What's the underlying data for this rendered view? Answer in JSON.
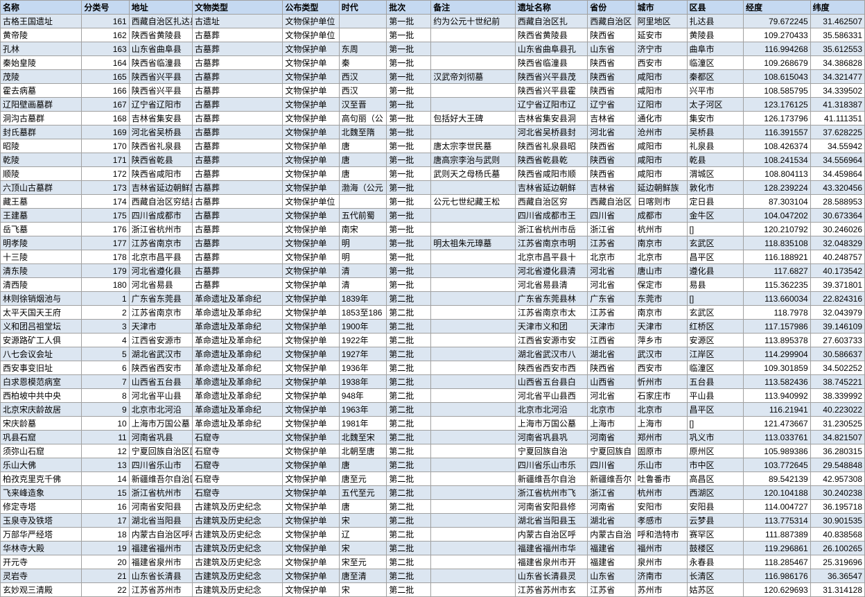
{
  "header_bg": "#c5d9f1",
  "stripe_colors": [
    "#dce6f1",
    "#ffffff"
  ],
  "border_color": "#a0a0a0",
  "columns": [
    {
      "key": "name",
      "label": "名称",
      "width": 108,
      "align": "left"
    },
    {
      "key": "catno",
      "label": "分类号",
      "width": 63,
      "align": "right"
    },
    {
      "key": "addr",
      "label": "地址",
      "width": 84,
      "align": "left"
    },
    {
      "key": "type",
      "label": "文物类型",
      "width": 120,
      "align": "left"
    },
    {
      "key": "pubtype",
      "label": "公布类型",
      "width": 75,
      "align": "left"
    },
    {
      "key": "era",
      "label": "时代",
      "width": 63,
      "align": "left"
    },
    {
      "key": "batch",
      "label": "批次",
      "width": 59,
      "align": "left"
    },
    {
      "key": "note",
      "label": "备注",
      "width": 112,
      "align": "left"
    },
    {
      "key": "sitename",
      "label": "遗址名称",
      "width": 96,
      "align": "left"
    },
    {
      "key": "province",
      "label": "省份",
      "width": 63,
      "align": "left"
    },
    {
      "key": "city",
      "label": "城市",
      "width": 69,
      "align": "left"
    },
    {
      "key": "district",
      "label": "区县",
      "width": 75,
      "align": "left"
    },
    {
      "key": "lon",
      "label": "经度",
      "width": 89,
      "align": "right"
    },
    {
      "key": "lat",
      "label": "纬度",
      "width": 72,
      "align": "right"
    }
  ],
  "rows": [
    {
      "name": "古格王国遗址",
      "catno": "161",
      "addr": "西藏自治区扎达县",
      "type": "古遗址",
      "pubtype": "文物保护单位",
      "era": "",
      "batch": "第一批",
      "note": "约为公元十世纪前",
      "sitename": "西藏自治区扎",
      "province": "西藏自治区",
      "city": "阿里地区",
      "district": "扎达县",
      "lon": "79.672245",
      "lat": "31.462507"
    },
    {
      "name": "黄帝陵",
      "catno": "162",
      "addr": "陕西省黄陵县",
      "type": "古墓葬",
      "pubtype": "文物保护单位",
      "era": "",
      "batch": "第一批",
      "note": "",
      "sitename": "陕西省黄陵县",
      "province": "陕西省",
      "city": "延安市",
      "district": "黄陵县",
      "lon": "109.270433",
      "lat": "35.586331"
    },
    {
      "name": "孔林",
      "catno": "163",
      "addr": "山东省曲阜县",
      "type": "古墓葬",
      "pubtype": "文物保护单",
      "era": "东周",
      "batch": "第一批",
      "note": "",
      "sitename": "山东省曲阜县孔",
      "province": "山东省",
      "city": "济宁市",
      "district": "曲阜市",
      "lon": "116.994268",
      "lat": "35.612553"
    },
    {
      "name": "秦始皇陵",
      "catno": "164",
      "addr": "陕西省临潼县",
      "type": "古墓葬",
      "pubtype": "文物保护单",
      "era": "秦",
      "batch": "第一批",
      "note": "",
      "sitename": "陕西省临潼县",
      "province": "陕西省",
      "city": "西安市",
      "district": "临潼区",
      "lon": "109.268679",
      "lat": "34.386828"
    },
    {
      "name": "茂陵",
      "catno": "165",
      "addr": "陕西省兴平县",
      "type": "古墓葬",
      "pubtype": "文物保护单",
      "era": "西汉",
      "batch": "第一批",
      "note": "汉武帝刘彻墓",
      "sitename": "陕西省兴平县茂",
      "province": "陕西省",
      "city": "咸阳市",
      "district": "秦都区",
      "lon": "108.615043",
      "lat": "34.321477"
    },
    {
      "name": "霍去病墓",
      "catno": "166",
      "addr": "陕西省兴平县",
      "type": "古墓葬",
      "pubtype": "文物保护单",
      "era": "西汉",
      "batch": "第一批",
      "note": "",
      "sitename": "陕西省兴平县霍",
      "province": "陕西省",
      "city": "咸阳市",
      "district": "兴平市",
      "lon": "108.585795",
      "lat": "34.339502"
    },
    {
      "name": "辽阳壁画墓群",
      "catno": "167",
      "addr": "辽宁省辽阳市",
      "type": "古墓葬",
      "pubtype": "文物保护单",
      "era": "汉至晋",
      "batch": "第一批",
      "note": "",
      "sitename": "辽宁省辽阳市辽",
      "province": "辽宁省",
      "city": "辽阳市",
      "district": "太子河区",
      "lon": "123.176125",
      "lat": "41.318387"
    },
    {
      "name": "洞沟古墓群",
      "catno": "168",
      "addr": "吉林省集安县",
      "type": "古墓葬",
      "pubtype": "文物保护单",
      "era": "高句丽（公",
      "batch": "第一批",
      "note": "包括好大王碑",
      "sitename": "吉林省集安县洞",
      "province": "吉林省",
      "city": "通化市",
      "district": "集安市",
      "lon": "126.173796",
      "lat": "41.111351"
    },
    {
      "name": "封氏墓群",
      "catno": "169",
      "addr": "河北省吴桥县",
      "type": "古墓葬",
      "pubtype": "文物保护单",
      "era": "北魏至隋",
      "batch": "第一批",
      "note": "",
      "sitename": "河北省吴桥县封",
      "province": "河北省",
      "city": "沧州市",
      "district": "吴桥县",
      "lon": "116.391557",
      "lat": "37.628225"
    },
    {
      "name": "昭陵",
      "catno": "170",
      "addr": "陕西省礼泉县",
      "type": "古墓葬",
      "pubtype": "文物保护单",
      "era": "唐",
      "batch": "第一批",
      "note": "唐太宗李世民墓",
      "sitename": "陕西省礼泉县昭",
      "province": "陕西省",
      "city": "咸阳市",
      "district": "礼泉县",
      "lon": "108.426374",
      "lat": "34.55942"
    },
    {
      "name": "乾陵",
      "catno": "171",
      "addr": "陕西省乾县",
      "type": "古墓葬",
      "pubtype": "文物保护单",
      "era": "唐",
      "batch": "第一批",
      "note": "唐高宗李治与武则",
      "sitename": "陕西省乾县乾",
      "province": "陕西省",
      "city": "咸阳市",
      "district": "乾县",
      "lon": "108.241534",
      "lat": "34.556964"
    },
    {
      "name": "顺陵",
      "catno": "172",
      "addr": "陕西省咸阳市",
      "type": "古墓葬",
      "pubtype": "文物保护单",
      "era": "唐",
      "batch": "第一批",
      "note": "武则天之母杨氏墓",
      "sitename": "陕西省咸阳市顺",
      "province": "陕西省",
      "city": "咸阳市",
      "district": "渭城区",
      "lon": "108.804113",
      "lat": "34.459864"
    },
    {
      "name": "六顶山古墓群",
      "catno": "173",
      "addr": "吉林省延边朝鲜族",
      "type": "古墓葬",
      "pubtype": "文物保护单",
      "era": "渤海（公元",
      "batch": "第一批",
      "note": "",
      "sitename": "吉林省延边朝鲜",
      "province": "吉林省",
      "city": "延边朝鲜族",
      "district": "敦化市",
      "lon": "128.239224",
      "lat": "43.320456"
    },
    {
      "name": "藏王墓",
      "catno": "174",
      "addr": "西藏自治区穷结县",
      "type": "古墓葬",
      "pubtype": "文物保护单位",
      "era": "",
      "batch": "第一批",
      "note": "公元七世纪藏王松",
      "sitename": "西藏自治区穷",
      "province": "西藏自治区",
      "city": "日喀则市",
      "district": "定日县",
      "lon": "87.303104",
      "lat": "28.588953"
    },
    {
      "name": "王建墓",
      "catno": "175",
      "addr": "四川省成都市",
      "type": "古墓葬",
      "pubtype": "文物保护单",
      "era": "五代前蜀",
      "batch": "第一批",
      "note": "",
      "sitename": "四川省成都市王",
      "province": "四川省",
      "city": "成都市",
      "district": "金牛区",
      "lon": "104.047202",
      "lat": "30.673364"
    },
    {
      "name": "岳飞墓",
      "catno": "176",
      "addr": "浙江省杭州市",
      "type": "古墓葬",
      "pubtype": "文物保护单",
      "era": "南宋",
      "batch": "第一批",
      "note": "",
      "sitename": "浙江省杭州市岳",
      "province": "浙江省",
      "city": "杭州市",
      "district": "[]",
      "lon": "120.210792",
      "lat": "30.246026"
    },
    {
      "name": "明孝陵",
      "catno": "177",
      "addr": "江苏省南京市",
      "type": "古墓葬",
      "pubtype": "文物保护单",
      "era": "明",
      "batch": "第一批",
      "note": "明太祖朱元璋墓",
      "sitename": "江苏省南京市明",
      "province": "江苏省",
      "city": "南京市",
      "district": "玄武区",
      "lon": "118.835108",
      "lat": "32.048329"
    },
    {
      "name": "十三陵",
      "catno": "178",
      "addr": "北京市昌平县",
      "type": "古墓葬",
      "pubtype": "文物保护单",
      "era": "明",
      "batch": "第一批",
      "note": "",
      "sitename": "北京市昌平县十",
      "province": "北京市",
      "city": "北京市",
      "district": "昌平区",
      "lon": "116.188921",
      "lat": "40.248757"
    },
    {
      "name": "清东陵",
      "catno": "179",
      "addr": "河北省遵化县",
      "type": "古墓葬",
      "pubtype": "文物保护单",
      "era": "清",
      "batch": "第一批",
      "note": "",
      "sitename": "河北省遵化县清",
      "province": "河北省",
      "city": "唐山市",
      "district": "遵化县",
      "lon": "117.6827",
      "lat": "40.173542"
    },
    {
      "name": "清西陵",
      "catno": "180",
      "addr": "河北省易县",
      "type": "古墓葬",
      "pubtype": "文物保护单",
      "era": "清",
      "batch": "第一批",
      "note": "",
      "sitename": "河北省易县清",
      "province": "河北省",
      "city": "保定市",
      "district": "易县",
      "lon": "115.362235",
      "lat": "39.371801"
    },
    {
      "name": "林则徐销烟池与",
      "catno": "1",
      "addr": "广东省东莞县",
      "type": "革命遗址及革命纪",
      "pubtype": "文物保护单",
      "era": "1839年",
      "batch": "第二批",
      "note": "",
      "sitename": "广东省东莞县林",
      "province": "广东省",
      "city": "东莞市",
      "district": "[]",
      "lon": "113.660034",
      "lat": "22.824316"
    },
    {
      "name": "太平天国天王府",
      "catno": "2",
      "addr": "江苏省南京市",
      "type": "革命遗址及革命纪",
      "pubtype": "文物保护单",
      "era": "1853至186",
      "batch": "第二批",
      "note": "",
      "sitename": "江苏省南京市太",
      "province": "江苏省",
      "city": "南京市",
      "district": "玄武区",
      "lon": "118.7978",
      "lat": "32.043979"
    },
    {
      "name": "义和团吕祖堂坛",
      "catno": "3",
      "addr": "天津市",
      "type": "革命遗址及革命纪",
      "pubtype": "文物保护单",
      "era": "1900年",
      "batch": "第二批",
      "note": "",
      "sitename": "天津市义和团",
      "province": "天津市",
      "city": "天津市",
      "district": "红桥区",
      "lon": "117.157986",
      "lat": "39.146109"
    },
    {
      "name": "安源路矿工人俱",
      "catno": "4",
      "addr": "江西省安源市",
      "type": "革命遗址及革命纪",
      "pubtype": "文物保护单",
      "era": "1922年",
      "batch": "第二批",
      "note": "",
      "sitename": "江西省安源市安",
      "province": "江西省",
      "city": "萍乡市",
      "district": "安源区",
      "lon": "113.895378",
      "lat": "27.603733"
    },
    {
      "name": "八七会议会址",
      "catno": "5",
      "addr": "湖北省武汉市",
      "type": "革命遗址及革命纪",
      "pubtype": "文物保护单",
      "era": "1927年",
      "batch": "第二批",
      "note": "",
      "sitename": "湖北省武汉市八",
      "province": "湖北省",
      "city": "武汉市",
      "district": "江岸区",
      "lon": "114.299904",
      "lat": "30.586637"
    },
    {
      "name": "西安事变旧址",
      "catno": "6",
      "addr": "陕西省西安市",
      "type": "革命遗址及革命纪",
      "pubtype": "文物保护单",
      "era": "1936年",
      "batch": "第二批",
      "note": "",
      "sitename": "陕西省西安市西",
      "province": "陕西省",
      "city": "西安市",
      "district": "临潼区",
      "lon": "109.301859",
      "lat": "34.502252"
    },
    {
      "name": "白求恩模范病室",
      "catno": "7",
      "addr": "山西省五台县",
      "type": "革命遗址及革命纪",
      "pubtype": "文物保护单",
      "era": "1938年",
      "batch": "第二批",
      "note": "",
      "sitename": "山西省五台县白",
      "province": "山西省",
      "city": "忻州市",
      "district": "五台县",
      "lon": "113.582436",
      "lat": "38.745221"
    },
    {
      "name": "西柏坡中共中央",
      "catno": "8",
      "addr": "河北省平山县",
      "type": "革命遗址及革命纪",
      "pubtype": "文物保护单",
      "era": "948年",
      "batch": "第二批",
      "note": "",
      "sitename": "河北省平山县西",
      "province": "河北省",
      "city": "石家庄市",
      "district": "平山县",
      "lon": "113.940992",
      "lat": "38.339992"
    },
    {
      "name": "北京宋庆龄故居",
      "catno": "9",
      "addr": "北京市北河沿",
      "type": "革命遗址及革命纪",
      "pubtype": "文物保护单",
      "era": "1963年",
      "batch": "第二批",
      "note": "",
      "sitename": "北京市北河沿",
      "province": "北京市",
      "city": "北京市",
      "district": "昌平区",
      "lon": "116.21941",
      "lat": "40.223022"
    },
    {
      "name": "宋庆龄墓",
      "catno": "10",
      "addr": "上海市万国公墓",
      "type": "革命遗址及革命纪",
      "pubtype": "文物保护单",
      "era": "1981年",
      "batch": "第二批",
      "note": "",
      "sitename": "上海市万国公墓",
      "province": "上海市",
      "city": "上海市",
      "district": "[]",
      "lon": "121.473667",
      "lat": "31.230525"
    },
    {
      "name": "巩县石窟",
      "catno": "11",
      "addr": "河南省巩县",
      "type": "石窟寺",
      "pubtype": "文物保护单",
      "era": "北魏至宋",
      "batch": "第二批",
      "note": "",
      "sitename": "河南省巩县巩",
      "province": "河南省",
      "city": "郑州市",
      "district": "巩义市",
      "lon": "113.033761",
      "lat": "34.821507"
    },
    {
      "name": "须弥山石窟",
      "catno": "12",
      "addr": "宁夏回族自治区固",
      "type": "石窟寺",
      "pubtype": "文物保护单",
      "era": "北朝至唐",
      "batch": "第二批",
      "note": "",
      "sitename": "宁夏回族自治",
      "province": "宁夏回族自",
      "city": "固原市",
      "district": "原州区",
      "lon": "105.989386",
      "lat": "36.280315"
    },
    {
      "name": "乐山大佛",
      "catno": "13",
      "addr": "四川省乐山市",
      "type": "石窟寺",
      "pubtype": "文物保护单",
      "era": "唐",
      "batch": "第二批",
      "note": "",
      "sitename": "四川省乐山市乐",
      "province": "四川省",
      "city": "乐山市",
      "district": "市中区",
      "lon": "103.772645",
      "lat": "29.548848"
    },
    {
      "name": "柏孜克里克千佛",
      "catno": "14",
      "addr": "新疆维吾尔自治区",
      "type": "石窟寺",
      "pubtype": "文物保护单",
      "era": "唐至元",
      "batch": "第二批",
      "note": "",
      "sitename": "新疆维吾尔自治",
      "province": "新疆维吾尔",
      "city": "吐鲁番市",
      "district": "高昌区",
      "lon": "89.542139",
      "lat": "42.957308"
    },
    {
      "name": "飞来峰造象",
      "catno": "15",
      "addr": "浙江省杭州市",
      "type": "石窟寺",
      "pubtype": "文物保护单",
      "era": "五代至元",
      "batch": "第二批",
      "note": "",
      "sitename": "浙江省杭州市飞",
      "province": "浙江省",
      "city": "杭州市",
      "district": "西湖区",
      "lon": "120.104188",
      "lat": "30.240238"
    },
    {
      "name": "修定寺塔",
      "catno": "16",
      "addr": "河南省安阳县",
      "type": "古建筑及历史纪念",
      "pubtype": "文物保护单",
      "era": "唐",
      "batch": "第二批",
      "note": "",
      "sitename": "河南省安阳县修",
      "province": "河南省",
      "city": "安阳市",
      "district": "安阳县",
      "lon": "114.004727",
      "lat": "36.195718"
    },
    {
      "name": "玉泉寺及铁塔",
      "catno": "17",
      "addr": "湖北省当阳县",
      "type": "古建筑及历史纪念",
      "pubtype": "文物保护单",
      "era": "宋",
      "batch": "第二批",
      "note": "",
      "sitename": "湖北省当阳县玉",
      "province": "湖北省",
      "city": "孝感市",
      "district": "云梦县",
      "lon": "113.775314",
      "lat": "30.901535"
    },
    {
      "name": "万部华严经塔",
      "catno": "18",
      "addr": "内蒙古自治区呼和",
      "type": "古建筑及历史纪念",
      "pubtype": "文物保护单",
      "era": "辽",
      "batch": "第二批",
      "note": "",
      "sitename": "内蒙古自治区呼",
      "province": "内蒙古自治",
      "city": "呼和浩特市",
      "district": "赛罕区",
      "lon": "111.887389",
      "lat": "40.838568"
    },
    {
      "name": "华林寺大殿",
      "catno": "19",
      "addr": "福建省福州市",
      "type": "古建筑及历史纪念",
      "pubtype": "文物保护单",
      "era": "宋",
      "batch": "第二批",
      "note": "",
      "sitename": "福建省福州市华",
      "province": "福建省",
      "city": "福州市",
      "district": "鼓楼区",
      "lon": "119.296861",
      "lat": "26.100265"
    },
    {
      "name": "开元寺",
      "catno": "20",
      "addr": "福建省泉州市",
      "type": "古建筑及历史纪念",
      "pubtype": "文物保护单",
      "era": "宋至元",
      "batch": "第二批",
      "note": "",
      "sitename": "福建省泉州市开",
      "province": "福建省",
      "city": "泉州市",
      "district": "永春县",
      "lon": "118.285467",
      "lat": "25.319696"
    },
    {
      "name": "灵岩寺",
      "catno": "21",
      "addr": "山东省长清县",
      "type": "古建筑及历史纪念",
      "pubtype": "文物保护单",
      "era": "唐至清",
      "batch": "第二批",
      "note": "",
      "sitename": "山东省长清县灵",
      "province": "山东省",
      "city": "济南市",
      "district": "长清区",
      "lon": "116.986176",
      "lat": "36.36547"
    },
    {
      "name": "玄妙观三清殿",
      "catno": "22",
      "addr": "江苏省苏州市",
      "type": "古建筑及历史纪念",
      "pubtype": "文物保护单",
      "era": "宋",
      "batch": "第二批",
      "note": "",
      "sitename": "江苏省苏州市玄",
      "province": "江苏省",
      "city": "苏州市",
      "district": "姑苏区",
      "lon": "120.629693",
      "lat": "31.314128"
    }
  ]
}
